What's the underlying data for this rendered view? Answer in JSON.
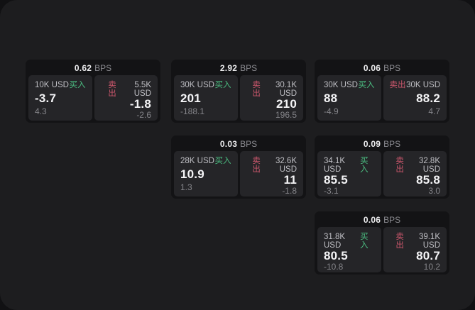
{
  "window": {
    "bps_label": "BPS",
    "buy_label": "买入",
    "sell_label": "卖出"
  },
  "colors": {
    "buy_green": "#4bbd81",
    "sell_red": "#c9566b",
    "panel_bg": "#252528",
    "card_bg": "#131315",
    "stage_bg": "#1d1d1f"
  },
  "cards": [
    {
      "grid": {
        "col": 1,
        "row": 1
      },
      "bps": "0.62",
      "buy": {
        "amount": "10K USD",
        "price": "-3.7",
        "delta": "4.3"
      },
      "sell": {
        "amount": "5.5K USD",
        "price": "-1.8",
        "delta": "-2.6"
      }
    },
    {
      "grid": {
        "col": 2,
        "row": 1
      },
      "bps": "2.92",
      "buy": {
        "amount": "30K USD",
        "price": "201",
        "delta": "-188.1"
      },
      "sell": {
        "amount": "30.1K USD",
        "price": "210",
        "delta": "196.5"
      }
    },
    {
      "grid": {
        "col": 3,
        "row": 1
      },
      "bps": "0.06",
      "buy": {
        "amount": "30K USD",
        "price": "88",
        "delta": "-4.9"
      },
      "sell": {
        "amount": "30K USD",
        "price": "88.2",
        "delta": "4.7"
      }
    },
    {
      "grid": {
        "col": 2,
        "row": 2
      },
      "bps": "0.03",
      "buy": {
        "amount": "28K USD",
        "price": "10.9",
        "delta": "1.3"
      },
      "sell": {
        "amount": "32.6K USD",
        "price": "11",
        "delta": "-1.8"
      }
    },
    {
      "grid": {
        "col": 3,
        "row": 2
      },
      "bps": "0.09",
      "buy": {
        "amount": "34.1K USD",
        "price": "85.5",
        "delta": "-3.1"
      },
      "sell": {
        "amount": "32.8K USD",
        "price": "85.8",
        "delta": "3.0"
      }
    },
    {
      "grid": {
        "col": 3,
        "row": 3
      },
      "bps": "0.06",
      "buy": {
        "amount": "31.8K USD",
        "price": "80.5",
        "delta": "-10.8"
      },
      "sell": {
        "amount": "39.1K USD",
        "price": "80.7",
        "delta": "10.2"
      }
    }
  ]
}
